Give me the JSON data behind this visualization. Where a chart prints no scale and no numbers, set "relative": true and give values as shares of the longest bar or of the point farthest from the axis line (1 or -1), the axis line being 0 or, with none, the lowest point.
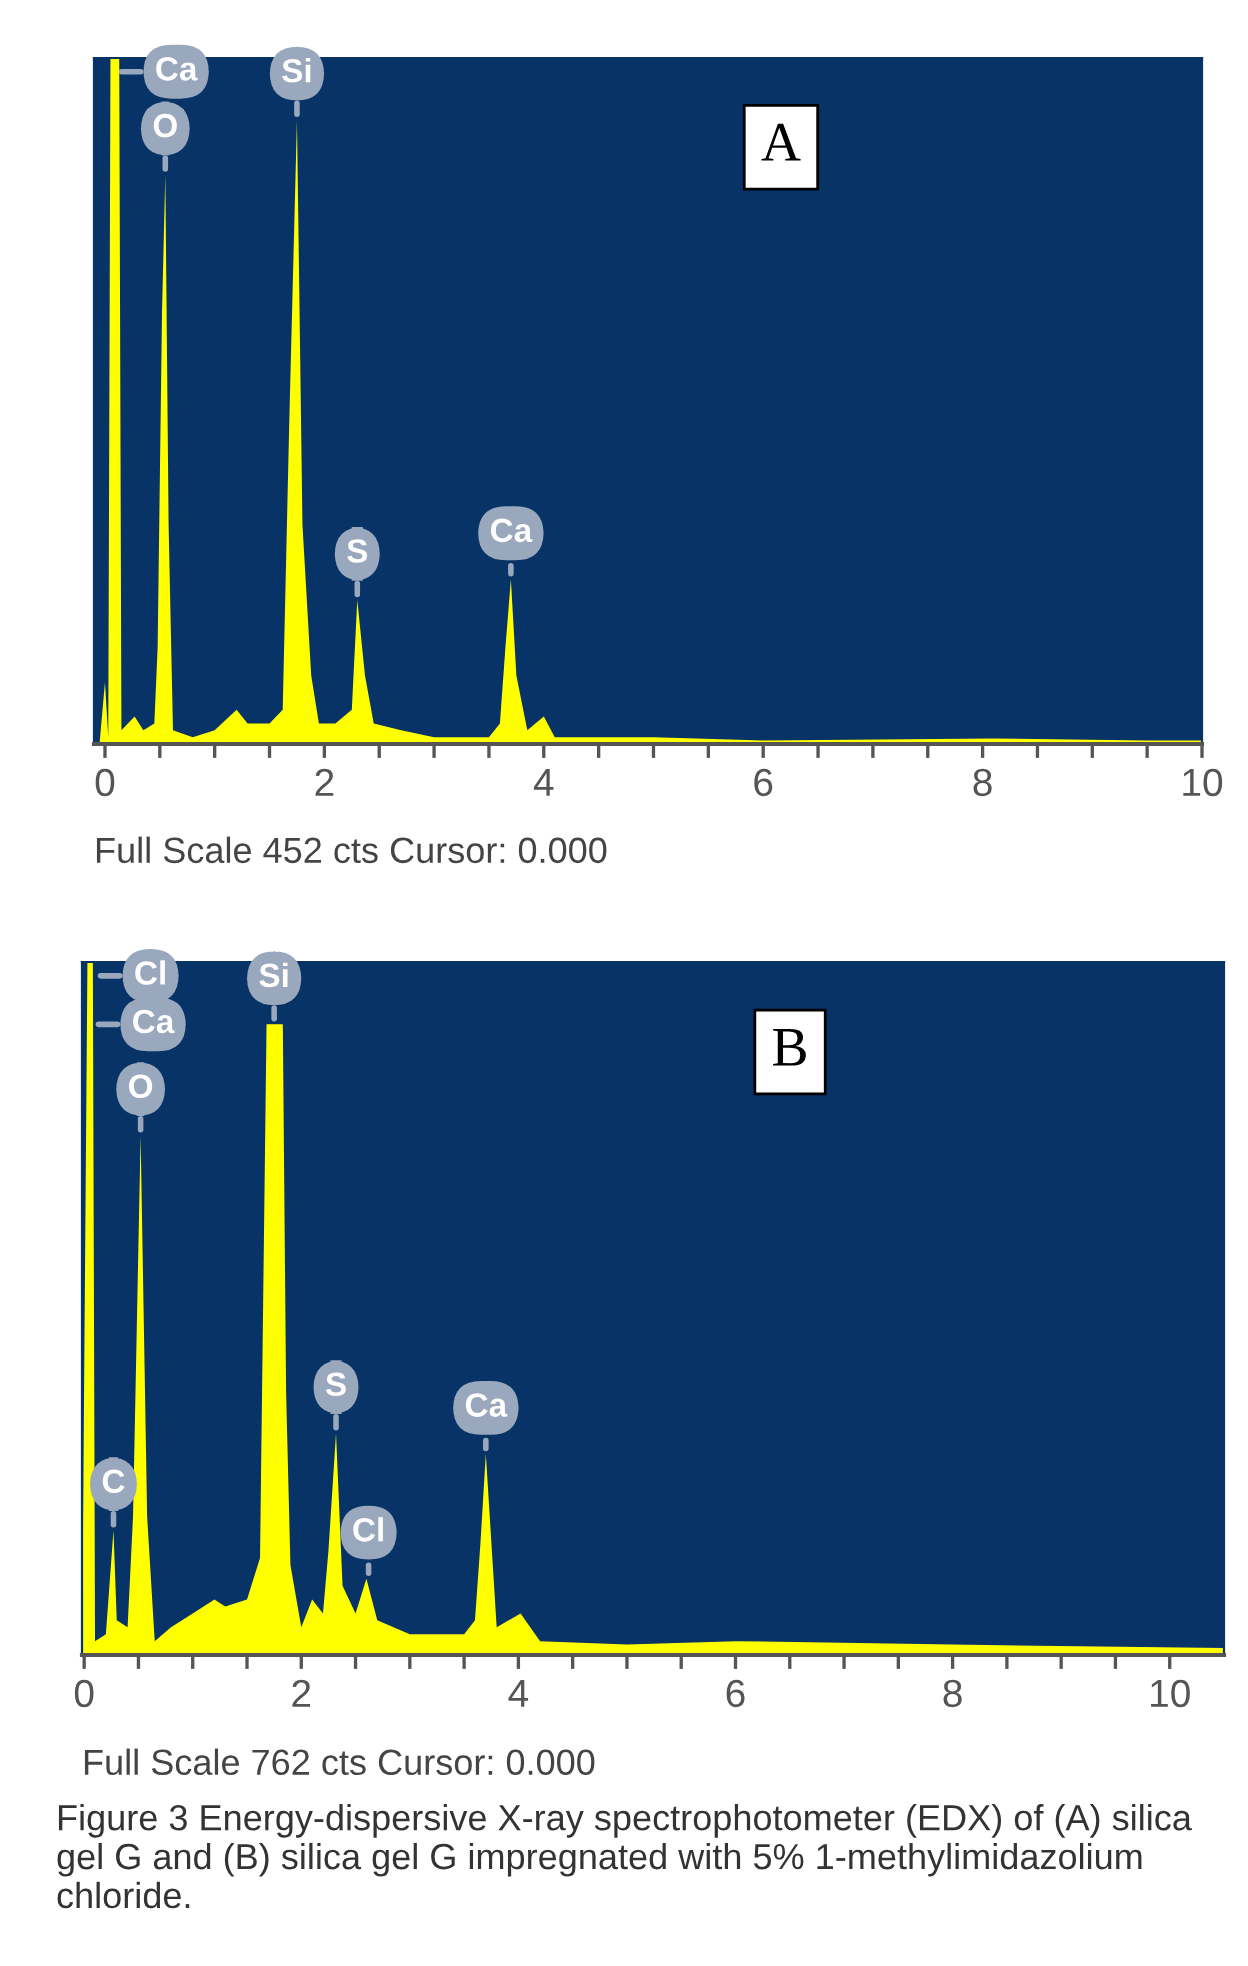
{
  "chart_data": [
    {
      "type": "area",
      "relative": true,
      "xlim": [
        -0.1,
        10.0
      ],
      "xticks": [
        0,
        {
          "value": 0.5,
          "label": null
        },
        {
          "value": 1,
          "label": null
        },
        {
          "value": 1.5,
          "label": null
        },
        2,
        {
          "value": 2.5,
          "label": null
        },
        {
          "value": 3,
          "label": null
        },
        {
          "value": 3.5,
          "label": null
        },
        4,
        {
          "value": 4.5,
          "label": null
        },
        {
          "value": 5,
          "label": null
        },
        {
          "value": 5.5,
          "label": null
        },
        6,
        {
          "value": 6.5,
          "label": null
        },
        {
          "value": 7,
          "label": null
        },
        {
          "value": 7.5,
          "label": null
        },
        8,
        {
          "value": 8.5,
          "label": null
        },
        {
          "value": 9,
          "label": null
        },
        {
          "value": 9.5,
          "label": null
        },
        10
      ],
      "x": [
        -0.05,
        0.0,
        0.03,
        0.05,
        0.13,
        0.15,
        0.27,
        0.35,
        0.45,
        0.48,
        0.52,
        0.55,
        0.58,
        0.62,
        0.8,
        1.0,
        1.2,
        1.3,
        1.5,
        1.62,
        1.68,
        1.75,
        1.8,
        1.88,
        1.95,
        2.1,
        2.25,
        2.3,
        2.37,
        2.45,
        2.7,
        3.0,
        3.5,
        3.6,
        3.65,
        3.7,
        3.75,
        3.85,
        4.0,
        4.1,
        5.0,
        6.0,
        8.1,
        9.5,
        10.0
      ],
      "series": [
        {
          "color": "#ffff00",
          "values": [
            0.0,
            0.09,
            0.01,
            1.0,
            1.0,
            0.02,
            0.04,
            0.02,
            0.03,
            0.14,
            0.63,
            0.83,
            0.32,
            0.02,
            0.01,
            0.02,
            0.05,
            0.03,
            0.03,
            0.05,
            0.47,
            0.91,
            0.32,
            0.1,
            0.03,
            0.03,
            0.05,
            0.21,
            0.1,
            0.03,
            0.02,
            0.01,
            0.01,
            0.03,
            0.14,
            0.24,
            0.1,
            0.02,
            0.04,
            0.01,
            0.01,
            0.005,
            0.008,
            0.005,
            0.005
          ]
        }
      ],
      "annotations": [
        {
          "text": "Ca",
          "x": 0.1,
          "y": 0.98
        },
        {
          "text": "O",
          "x": 0.55,
          "y": 0.83
        },
        {
          "text": "Si",
          "x": 1.75,
          "y": 0.91
        },
        {
          "text": "S",
          "x": 2.3,
          "y": 0.21
        },
        {
          "text": "Ca",
          "x": 3.7,
          "y": 0.24
        },
        "A",
        "Full Scale 452 cts Cursor: 0.000"
      ]
    },
    {
      "type": "area",
      "relative": true,
      "xlim": [
        -0.02,
        10.5
      ],
      "xticks": [
        0,
        {
          "value": 0.5,
          "label": null
        },
        {
          "value": 1,
          "label": null
        },
        {
          "value": 1.5,
          "label": null
        },
        2,
        {
          "value": 2.5,
          "label": null
        },
        {
          "value": 3,
          "label": null
        },
        {
          "value": 3.5,
          "label": null
        },
        4,
        {
          "value": 4.5,
          "label": null
        },
        {
          "value": 5,
          "label": null
        },
        {
          "value": 5.5,
          "label": null
        },
        6,
        {
          "value": 6.5,
          "label": null
        },
        {
          "value": 7,
          "label": null
        },
        {
          "value": 7.5,
          "label": null
        },
        8,
        {
          "value": 8.5,
          "label": null
        },
        {
          "value": 9,
          "label": null
        },
        {
          "value": 9.5,
          "label": null
        },
        10
      ],
      "x": [
        -0.02,
        0.03,
        0.08,
        0.1,
        0.2,
        0.27,
        0.3,
        0.4,
        0.45,
        0.52,
        0.58,
        0.65,
        0.8,
        1.0,
        1.2,
        1.3,
        1.5,
        1.62,
        1.68,
        1.83,
        1.86,
        1.9,
        2.0,
        2.1,
        2.2,
        2.25,
        2.32,
        2.38,
        2.5,
        2.6,
        2.7,
        3.0,
        3.5,
        3.6,
        3.65,
        3.7,
        3.8,
        4.02,
        4.2,
        5.0,
        6.0,
        8.0,
        10.5
      ],
      "series": [
        {
          "color": "#ffff00",
          "values": [
            0.0,
            1.0,
            1.0,
            0.02,
            0.03,
            0.18,
            0.05,
            0.04,
            0.2,
            0.75,
            0.2,
            0.02,
            0.04,
            0.06,
            0.08,
            0.07,
            0.08,
            0.14,
            0.91,
            0.91,
            0.38,
            0.13,
            0.04,
            0.08,
            0.06,
            0.15,
            0.32,
            0.1,
            0.06,
            0.11,
            0.05,
            0.03,
            0.03,
            0.05,
            0.16,
            0.29,
            0.04,
            0.06,
            0.02,
            0.015,
            0.02,
            0.015,
            0.01
          ]
        }
      ],
      "annotations": [
        {
          "text": "Cl",
          "x": 0.1,
          "y": 0.98
        },
        {
          "text": "Ca",
          "x": 0.08,
          "y": 0.91
        },
        {
          "text": "O",
          "x": 0.52,
          "y": 0.75
        },
        {
          "text": "Si",
          "x": 1.75,
          "y": 0.91
        },
        {
          "text": "S",
          "x": 2.32,
          "y": 0.32
        },
        {
          "text": "Ca",
          "x": 3.7,
          "y": 0.29
        },
        {
          "text": "C",
          "x": 0.27,
          "y": 0.18
        },
        {
          "text": "Cl",
          "x": 2.62,
          "y": 0.11
        },
        "B",
        "Full Scale 762 cts Cursor: 0.000",
        "Figure 3 Energy-dispersive X-ray spectrophotometer (EDX) of (A) silica gel G and (B) silica gel G impregnated with 5% 1-methylimidazolium chloride."
      ]
    }
  ]
}
